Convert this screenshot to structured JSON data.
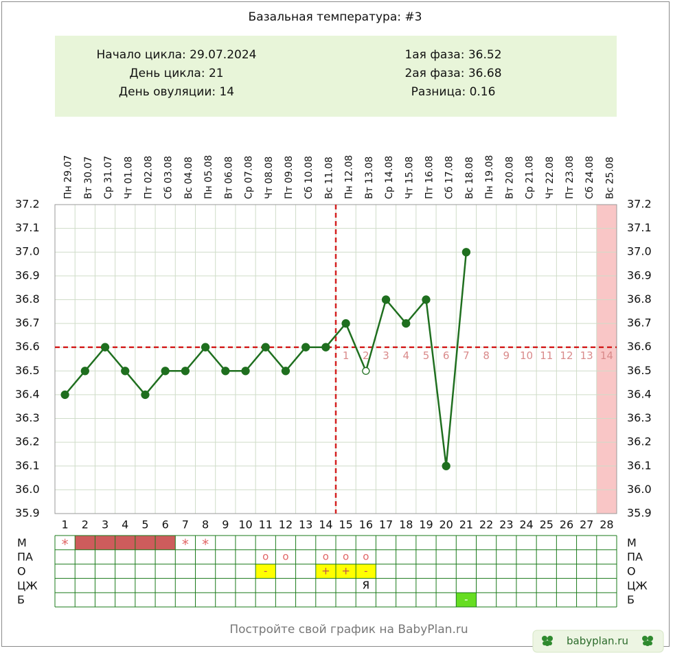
{
  "chart_data": {
    "type": "line",
    "title": "Базальная температура: #3",
    "info_left": [
      "Начало цикла: 29.07.2024",
      "День цикла: 21",
      "День овуляции: 14"
    ],
    "info_right": [
      "1ая фаза: 36.52",
      "2ая фаза: 36.68",
      "Разница: 0.16"
    ],
    "x": [
      1,
      2,
      3,
      4,
      5,
      6,
      7,
      8,
      9,
      10,
      11,
      12,
      13,
      14,
      15,
      16,
      17,
      18,
      19,
      20,
      21,
      22,
      23,
      24,
      25,
      26,
      27,
      28
    ],
    "weekdays": [
      "Пн",
      "Вт",
      "Ср",
      "Чт",
      "Пт",
      "Сб",
      "Вс",
      "Пн",
      "Вт",
      "Ср",
      "Чт",
      "Пт",
      "Сб",
      "Вс",
      "Пн",
      "Вт",
      "Ср",
      "Чт",
      "Пт",
      "Сб",
      "Вс",
      "Пн",
      "Вт",
      "Ср",
      "Чт",
      "Пт",
      "Сб",
      "Вс"
    ],
    "dates": [
      "29.07",
      "30.07",
      "31.07",
      "01.08",
      "02.08",
      "03.08",
      "04.08",
      "05.08",
      "06.08",
      "07.08",
      "08.08",
      "09.08",
      "10.08",
      "11.08",
      "12.08",
      "13.08",
      "14.08",
      "15.08",
      "16.08",
      "17.08",
      "18.08",
      "19.08",
      "20.08",
      "21.08",
      "22.08",
      "23.08",
      "24.08",
      "25.08"
    ],
    "series": [
      {
        "name": "Температура",
        "color": "#1f6f1f",
        "values": [
          36.4,
          36.5,
          36.6,
          36.5,
          36.4,
          36.5,
          36.5,
          36.6,
          36.5,
          36.5,
          36.6,
          36.5,
          36.6,
          36.6,
          36.7,
          36.5,
          36.8,
          36.7,
          36.8,
          36.1,
          37.0,
          null,
          null,
          null,
          null,
          null,
          null,
          null
        ]
      }
    ],
    "hollow_days": [
      16
    ],
    "ylim": [
      35.9,
      37.2
    ],
    "yticks": [
      37.2,
      37.1,
      {
        "value": 37.0,
        "label": "37.0"
      },
      36.9,
      36.8,
      36.7,
      36.6,
      36.5,
      36.4,
      36.3,
      36.2,
      36.1,
      {
        "value": 36.0,
        "label": "36.0"
      },
      35.9
    ],
    "grid": true,
    "coverline": 36.6,
    "ovulation_day": 14,
    "phase2_day_labels": [
      1,
      2,
      3,
      4,
      5,
      6,
      7,
      8,
      9,
      10,
      11,
      12,
      13,
      14
    ],
    "highlight_day": 28,
    "highlight_color": "#f9c6c6",
    "table": [
      {
        "label": "М",
        "items": [
          {
            "day": 1,
            "text": "*",
            "color": "#e06666"
          },
          {
            "day": 2,
            "span": 5,
            "fill": "#cd5c5c"
          },
          {
            "day": 7,
            "text": "*",
            "color": "#e06666"
          },
          {
            "day": 8,
            "text": "*",
            "color": "#e06666"
          }
        ]
      },
      {
        "label": "ПА",
        "items": [
          {
            "day": 11,
            "text": "o",
            "color": "#e06666"
          },
          {
            "day": 12,
            "text": "o",
            "color": "#e06666"
          },
          {
            "day": 14,
            "text": "o",
            "color": "#e06666"
          },
          {
            "day": 15,
            "text": "o",
            "color": "#e06666"
          },
          {
            "day": 16,
            "text": "o",
            "color": "#e06666"
          }
        ]
      },
      {
        "label": "О",
        "items": [
          {
            "day": 11,
            "text": "-",
            "fill": "#ffff00",
            "color": "#c05050"
          },
          {
            "day": 14,
            "text": "+",
            "fill": "#ffff00",
            "color": "#c05050"
          },
          {
            "day": 15,
            "text": "+",
            "fill": "#ffff00",
            "color": "#c05050"
          },
          {
            "day": 16,
            "text": "-",
            "fill": "#ffff00",
            "color": "#c05050"
          }
        ]
      },
      {
        "label": "ЦЖ",
        "items": [
          {
            "day": 16,
            "text": "Я",
            "color": "#000000"
          }
        ]
      },
      {
        "label": "Б",
        "items": [
          {
            "day": 21,
            "text": "-",
            "fill": "#66dd22",
            "color": "#ffffff"
          }
        ]
      }
    ],
    "footer": "Постройте свой график на BabyPlan.ru",
    "badge": "babyplan.ru"
  }
}
